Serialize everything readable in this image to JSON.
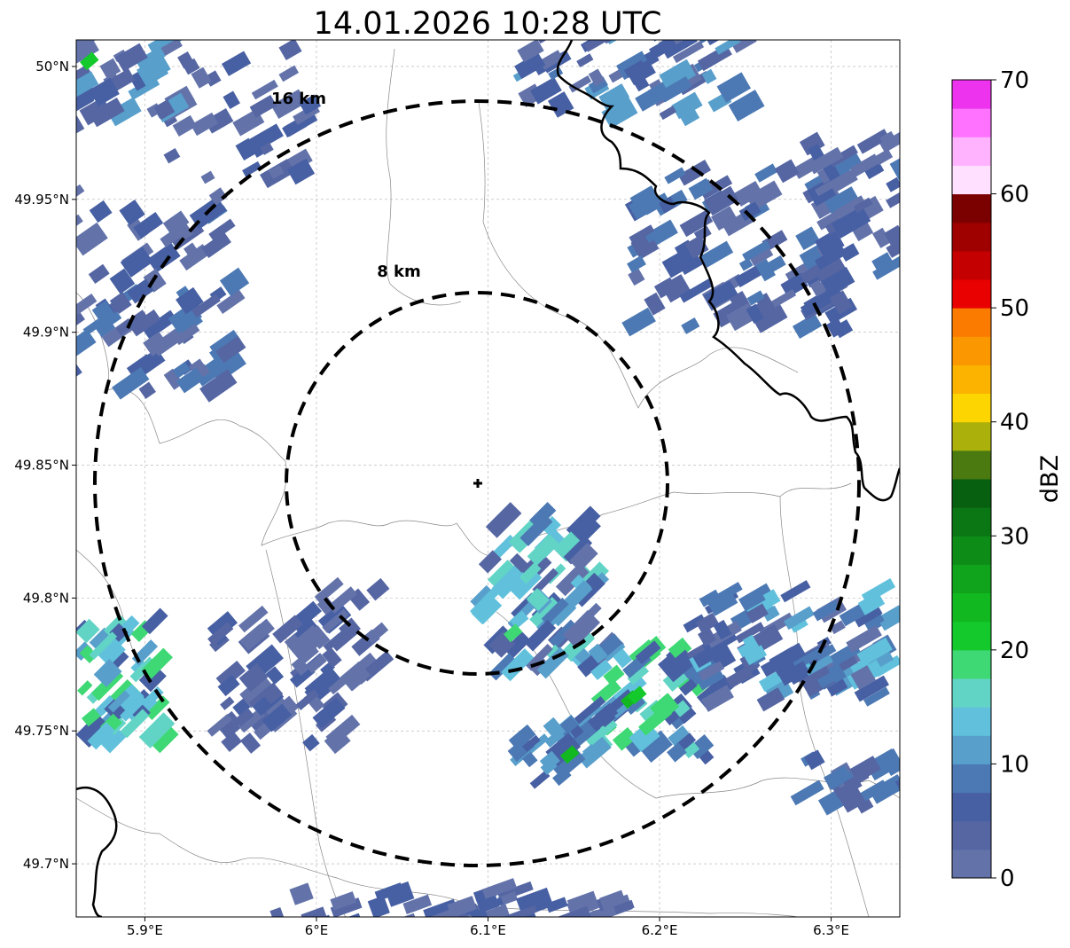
{
  "title": "14.01.2026 10:28 UTC",
  "map": {
    "lon_range": [
      5.86,
      6.34
    ],
    "lat_range": [
      49.68,
      50.01
    ],
    "lon_ticks": [
      {
        "value": 5.9,
        "label": "5.9°E"
      },
      {
        "value": 6.0,
        "label": "6°E"
      },
      {
        "value": 6.1,
        "label": "6.1°E"
      },
      {
        "value": 6.2,
        "label": "6.2°E"
      },
      {
        "value": 6.3,
        "label": "6.3°E"
      }
    ],
    "lat_ticks": [
      {
        "value": 49.7,
        "label": "49.7°N"
      },
      {
        "value": 49.75,
        "label": "49.75°N"
      },
      {
        "value": 49.8,
        "label": "49.8°N"
      },
      {
        "value": 49.85,
        "label": "49.85°N"
      },
      {
        "value": 49.9,
        "label": "49.9°N"
      },
      {
        "value": 49.95,
        "label": "49.95°N"
      },
      {
        "value": 50.0,
        "label": "50°N"
      }
    ],
    "radar_center": {
      "lon": 6.095,
      "lat": 49.843
    },
    "range_rings": [
      {
        "radius_km": 8,
        "label": "8 km"
      },
      {
        "radius_km": 16,
        "label": "16 km"
      }
    ],
    "gridlines": true
  },
  "colorbar": {
    "label": "dBZ",
    "min": 0,
    "max": 70,
    "tick_values": [
      0,
      10,
      20,
      30,
      40,
      50,
      60,
      70
    ],
    "tick_labels": [
      "0",
      "10",
      "20",
      "30",
      "40",
      "50",
      "60",
      "70"
    ],
    "colors": [
      "#6373aa",
      "#5566a3",
      "#4760a3",
      "#4c79b4",
      "#589fcb",
      "#61c1dc",
      "#62d4c5",
      "#3ed874",
      "#14c92c",
      "#12b81f",
      "#10a31c",
      "#0d8c18",
      "#0b7614",
      "#075f10",
      "#4a7a10",
      "#abb10a",
      "#fdd500",
      "#fbb300",
      "#fb9700",
      "#fb7a00",
      "#e90000",
      "#c40000",
      "#9f0000",
      "#7b0000",
      "#ffe0ff",
      "#ffb3ff",
      "#ff72ff",
      "#ee33ee"
    ]
  },
  "colors": {
    "accent_ring": "#000000",
    "border": "#000000",
    "admin_boundary": "#888888",
    "grid": "#b0b0b0"
  }
}
